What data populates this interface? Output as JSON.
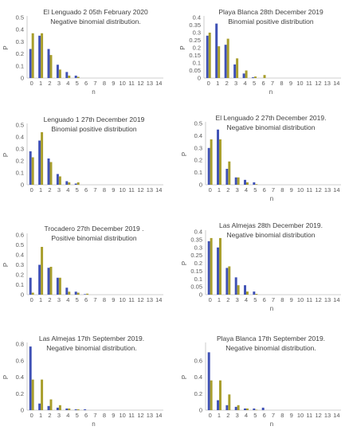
{
  "colors": {
    "blue": "#3f51b5",
    "olive": "#a89e2c",
    "axis": "#bfbfbf",
    "text": "#595959"
  },
  "chart_data": [
    {
      "type": "bar",
      "title": "El Lenguado 2 05th February 2020",
      "subtitle": "Negative binomial distribution.",
      "xlabel": "n",
      "ylabel": "P",
      "categories": [
        "0",
        "1",
        "2",
        "3",
        "4",
        "5",
        "6",
        "7",
        "8",
        "9",
        "10",
        "11",
        "12",
        "13",
        "14"
      ],
      "ylim": [
        0,
        0.5
      ],
      "yticks": [
        "0",
        "0.1",
        "0.2",
        "0.3",
        "0.4",
        "0.5"
      ],
      "series": [
        {
          "values": [
            0.24,
            0.35,
            0.24,
            0.11,
            0.05,
            0.02,
            0,
            0,
            0,
            0,
            0,
            0,
            0,
            0,
            0
          ]
        },
        {
          "values": [
            0.37,
            0.37,
            0.19,
            0.07,
            0.02,
            0.01,
            0,
            0,
            0,
            0,
            0,
            0,
            0,
            0,
            0
          ]
        }
      ]
    },
    {
      "type": "bar",
      "title": "Playa Blanca 28th December 2019",
      "subtitle": "Binomial positive distribution",
      "xlabel": "n",
      "ylabel": "P",
      "categories": [
        "0",
        "1",
        "2",
        "3",
        "4",
        "5",
        "6",
        "7",
        "8",
        "9",
        "10",
        "11",
        "12",
        "13",
        "14"
      ],
      "ylim": [
        0,
        0.4
      ],
      "yticks": [
        "0",
        "0.05",
        "0.1",
        "0.15",
        "0.2",
        "0.25",
        "0.3",
        "0.35",
        "0.4"
      ],
      "series": [
        {
          "values": [
            0.28,
            0.36,
            0.22,
            0.09,
            0.03,
            0.005,
            0,
            0,
            0,
            0,
            0,
            0,
            0,
            0,
            0
          ]
        },
        {
          "values": [
            0.3,
            0.21,
            0.26,
            0.13,
            0.05,
            0.01,
            0.02,
            0,
            0,
            0,
            0,
            0,
            0,
            0,
            0
          ]
        }
      ]
    },
    {
      "type": "bar",
      "title": "Lenguado 1 27th December 2019",
      "subtitle": "Binomial positive distribution",
      "xlabel": "",
      "ylabel": "P",
      "categories": [
        "0",
        "1",
        "2",
        "3",
        "4",
        "5",
        "6",
        "7",
        "8",
        "9",
        "10",
        "11",
        "12",
        "13",
        "14"
      ],
      "ylim": [
        0,
        0.5
      ],
      "yticks": [
        "0",
        "0.1",
        "0.2",
        "0.3",
        "0.4",
        "0.5"
      ],
      "series": [
        {
          "values": [
            0.28,
            0.37,
            0.22,
            0.09,
            0.03,
            0.01,
            0,
            0,
            0,
            0,
            0,
            0,
            0,
            0,
            0
          ]
        },
        {
          "values": [
            0.23,
            0.44,
            0.19,
            0.07,
            0.02,
            0.02,
            0,
            0,
            0,
            0,
            0,
            0,
            0,
            0,
            0
          ]
        }
      ]
    },
    {
      "type": "bar",
      "title": "El Lenguado 2 27th December 2019.",
      "subtitle": "Negative binomial distribution",
      "xlabel": "n",
      "ylabel": "P",
      "categories": [
        "0",
        "1",
        "2",
        "3",
        "4",
        "5",
        "6",
        "7",
        "8",
        "9",
        "10",
        "11",
        "12",
        "13",
        "14"
      ],
      "ylim": [
        0,
        0.5
      ],
      "yticks": [
        "0",
        "0.1",
        "0.2",
        "0.3",
        "0.4",
        "0.5"
      ],
      "series": [
        {
          "values": [
            0.3,
            0.45,
            0.13,
            0.06,
            0.04,
            0.02,
            0,
            0,
            0,
            0,
            0,
            0,
            0,
            0,
            0
          ]
        },
        {
          "values": [
            0.37,
            0.37,
            0.19,
            0.06,
            0.02,
            0.005,
            0,
            0,
            0,
            0,
            0,
            0,
            0,
            0,
            0
          ]
        }
      ]
    },
    {
      "type": "bar",
      "title": "Trocadero 27th December 2019 .",
      "subtitle": "Positive binomial distribution",
      "xlabel": "",
      "ylabel": "P",
      "categories": [
        "0",
        "1",
        "2",
        "3",
        "4",
        "5",
        "6",
        "7",
        "8",
        "9",
        "10",
        "11",
        "12",
        "13",
        "14"
      ],
      "ylim": [
        0,
        0.6
      ],
      "yticks": [
        "0",
        "0.1",
        "0.2",
        "0.3",
        "0.4",
        "0.5",
        "0.6"
      ],
      "series": [
        {
          "values": [
            0.17,
            0.3,
            0.27,
            0.17,
            0.07,
            0.03,
            0.005,
            0,
            0,
            0,
            0,
            0,
            0,
            0,
            0
          ]
        },
        {
          "values": [
            0.02,
            0.48,
            0.28,
            0.17,
            0.03,
            0.02,
            0.01,
            0,
            0,
            0,
            0,
            0,
            0,
            0,
            0
          ]
        }
      ]
    },
    {
      "type": "bar",
      "title": "Las Almejas 28th December 2019.",
      "subtitle": "Negative binomial distribution",
      "xlabel": "n",
      "ylabel": "P",
      "categories": [
        "0",
        "1",
        "2",
        "3",
        "4",
        "5",
        "6",
        "7",
        "8",
        "9",
        "10",
        "11",
        "12",
        "13",
        "14"
      ],
      "ylim": [
        0,
        0.4
      ],
      "yticks": [
        "0",
        "0.05",
        "0.1",
        "0.15",
        "0.2",
        "0.25",
        "0.3",
        "0.35",
        "0.4"
      ],
      "series": [
        {
          "values": [
            0.34,
            0.3,
            0.17,
            0.11,
            0.06,
            0.02,
            0,
            0,
            0,
            0,
            0,
            0,
            0,
            0,
            0
          ]
        },
        {
          "values": [
            0.36,
            0.36,
            0.18,
            0.06,
            0.02,
            0.005,
            0,
            0,
            0,
            0,
            0,
            0,
            0,
            0,
            0
          ]
        }
      ]
    },
    {
      "type": "bar",
      "title": "Las Almejas 17th September 2019.",
      "subtitle": "Negative binomial distribution.",
      "xlabel": "n",
      "ylabel": "P",
      "categories": [
        "0",
        "1",
        "2",
        "3",
        "4",
        "5",
        "6",
        "7",
        "8",
        "9",
        "10",
        "11",
        "12",
        "13",
        "14"
      ],
      "ylim": [
        0,
        0.8
      ],
      "yticks": [
        "0",
        "0.2",
        "0.4",
        "0.6",
        "0.8"
      ],
      "series": [
        {
          "values": [
            0.77,
            0.08,
            0.05,
            0.03,
            0.02,
            0.01,
            0.01,
            0,
            0,
            0,
            0,
            0,
            0,
            0,
            0
          ]
        },
        {
          "values": [
            0.37,
            0.37,
            0.13,
            0.06,
            0.02,
            0.01,
            0,
            0,
            0,
            0,
            0,
            0,
            0,
            0,
            0
          ]
        }
      ]
    },
    {
      "type": "bar",
      "title": "Playa Blanca 17th September 2019.",
      "subtitle": "Negative binomial distribution.",
      "xlabel": "n",
      "ylabel": "P",
      "categories": [
        "0",
        "1",
        "2",
        "3",
        "4",
        "5",
        "6",
        "7",
        "8",
        "9",
        "10",
        "11",
        "12",
        "13",
        "14"
      ],
      "ylim": [
        0,
        0.8
      ],
      "yticks": [
        "0",
        "0.2",
        "0.4",
        "0.6"
      ],
      "series": [
        {
          "values": [
            0.7,
            0.12,
            0.06,
            0.04,
            0.02,
            0.02,
            0.03,
            0,
            0,
            0,
            0,
            0,
            0,
            0,
            0
          ]
        },
        {
          "values": [
            0.36,
            0.36,
            0.19,
            0.06,
            0.02,
            0.005,
            0,
            0,
            0,
            0,
            0,
            0,
            0,
            0,
            0
          ]
        }
      ]
    }
  ]
}
